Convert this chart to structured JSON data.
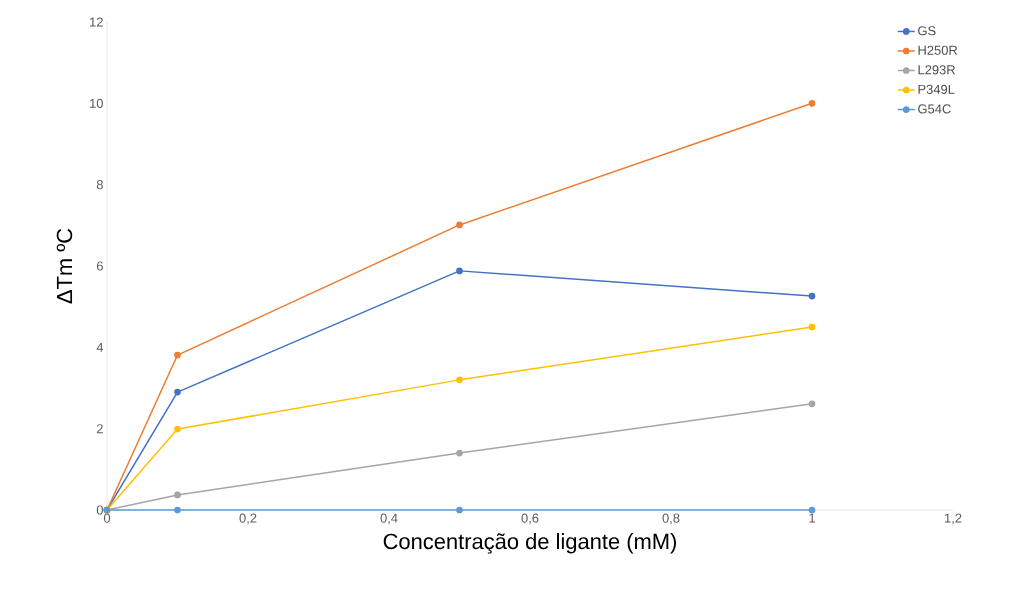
{
  "chart_data": {
    "type": "line",
    "xlabel": "Concentração de ligante (mM)",
    "ylabel": "ΔTm ºC",
    "x": [
      0,
      0.1,
      0.5,
      1
    ],
    "series": [
      {
        "name": "GS",
        "color": "#4472c4",
        "values": [
          0,
          2.9,
          5.88,
          5.26
        ]
      },
      {
        "name": "H250R",
        "color": "#ed7d31",
        "values": [
          0,
          3.81,
          7.01,
          10.0
        ]
      },
      {
        "name": "L293R",
        "color": "#a5a5a5",
        "values": [
          0,
          0.37,
          1.4,
          2.61
        ]
      },
      {
        "name": "P349L",
        "color": "#ffc000",
        "values": [
          0,
          1.99,
          3.2,
          4.5
        ]
      },
      {
        "name": "G54C",
        "color": "#5b9bd5",
        "values": [
          0,
          0,
          0,
          0
        ]
      }
    ],
    "xlim": [
      0,
      1.2
    ],
    "ylim": [
      0,
      12
    ],
    "xticks": [
      0,
      {
        "value": 0.2,
        "label": "0,2"
      },
      {
        "value": 0.4,
        "label": "0,4"
      },
      {
        "value": 0.6,
        "label": "0,6"
      },
      {
        "value": 0.8,
        "label": "0,8"
      },
      1,
      {
        "value": 1.2,
        "label": "1,2"
      }
    ],
    "yticks": [
      0,
      2,
      4,
      6,
      8,
      10,
      12
    ],
    "grid": false,
    "legend": "top right",
    "marker": "circle",
    "line_style": "solid"
  }
}
